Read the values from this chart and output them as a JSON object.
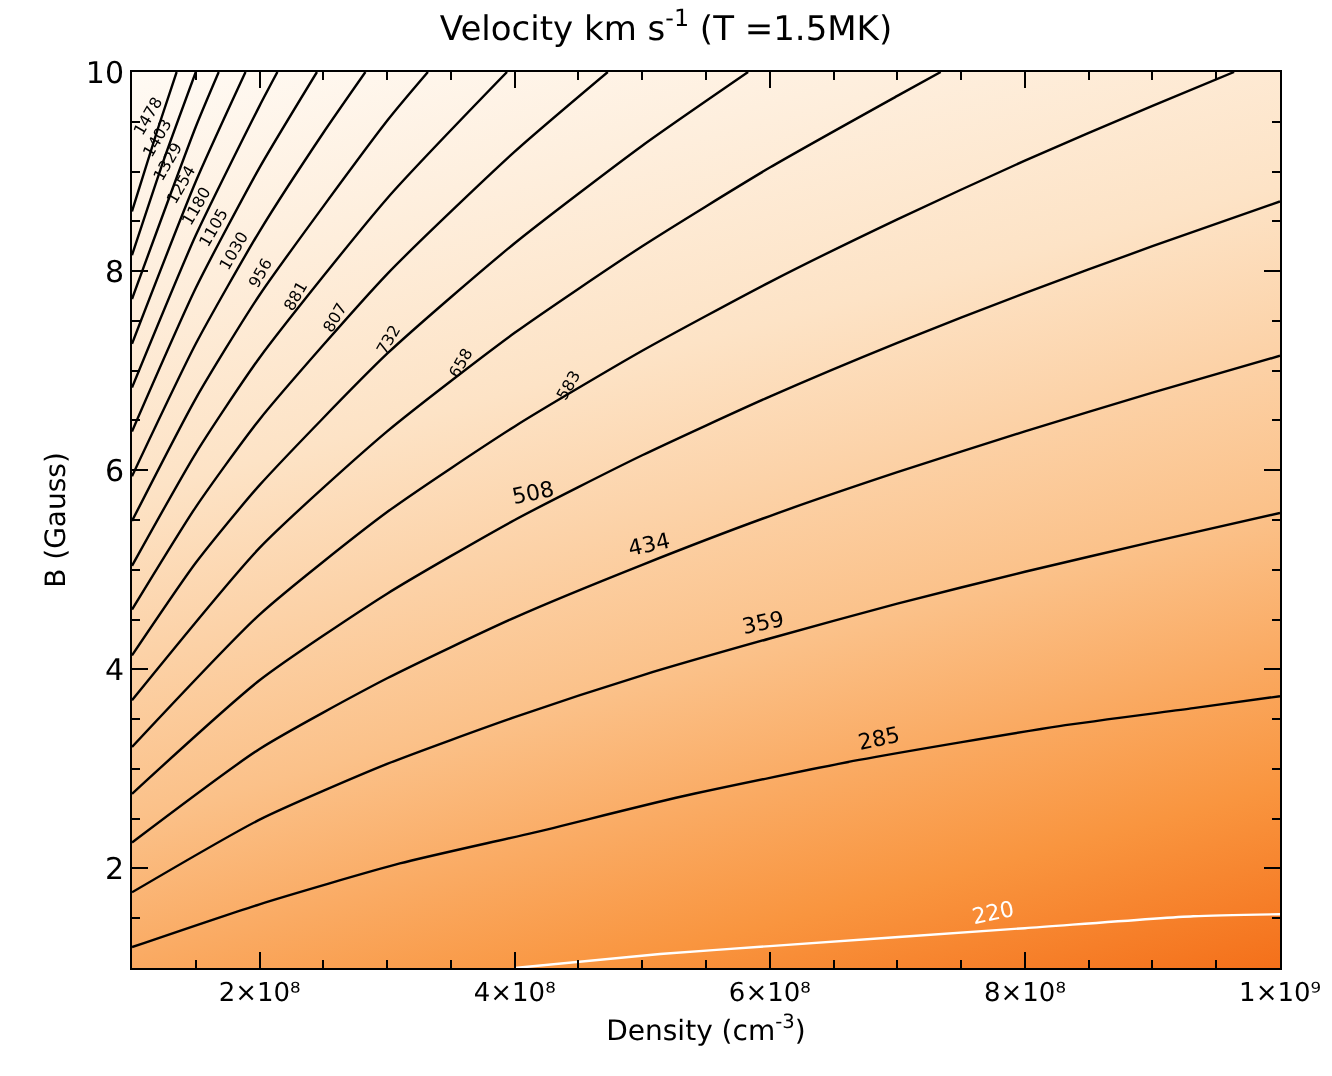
{
  "chart_data": {
    "type": "line",
    "title": "Velocity km s$^{-1}$ (T =1.5MK)",
    "xlabel": "Density (cm$^{-3}$)",
    "ylabel": "B (Gauss)",
    "xlim": [
      100000000,
      1000000000
    ],
    "xticks": [
      {
        "value": 150000000,
        "label": null
      },
      {
        "value": 200000000,
        "label": "2×10⁸"
      },
      {
        "value": 250000000,
        "label": null
      },
      {
        "value": 300000000,
        "label": null
      },
      {
        "value": 350000000,
        "label": null
      },
      {
        "value": 400000000,
        "label": "4×10⁸"
      },
      {
        "value": 450000000,
        "label": null
      },
      {
        "value": 500000000,
        "label": null
      },
      {
        "value": 550000000,
        "label": null
      },
      {
        "value": 600000000,
        "label": "6×10⁸"
      },
      {
        "value": 650000000,
        "label": null
      },
      {
        "value": 700000000,
        "label": null
      },
      {
        "value": 750000000,
        "label": null
      },
      {
        "value": 800000000,
        "label": "8×10⁸"
      },
      {
        "value": 850000000,
        "label": null
      },
      {
        "value": 900000000,
        "label": null
      },
      {
        "value": 950000000,
        "label": null
      },
      {
        "value": 1000000000,
        "label": "1×10⁹"
      }
    ],
    "ylim": [
      1,
      10
    ],
    "yticks": [
      {
        "value": 1.5,
        "label": null
      },
      2,
      {
        "value": 2.5,
        "label": null
      },
      {
        "value": 3,
        "label": null
      },
      {
        "value": 3.5,
        "label": null
      },
      4,
      {
        "value": 4.5,
        "label": null
      },
      {
        "value": 5,
        "label": null
      },
      {
        "value": 5.5,
        "label": null
      },
      6,
      {
        "value": 6.5,
        "label": null
      },
      {
        "value": 7,
        "label": null
      },
      {
        "value": 7.5,
        "label": null
      },
      8,
      {
        "value": 8.5,
        "label": null
      },
      {
        "value": 9,
        "label": null
      },
      {
        "value": 9.5,
        "label": null
      },
      10
    ],
    "grid": false,
    "legend": false,
    "marker": "none",
    "line_style": "solid",
    "series": [
      {
        "name": "220",
        "color": "#ffffff",
        "x": [
          400000000,
          514000000,
          600000000,
          800000000,
          932000000,
          1000000000
        ],
        "values": [
          1.0,
          1.14,
          1.22,
          1.4,
          1.52,
          1.54
        ]
      },
      {
        "name": "285",
        "color": "#000000",
        "x": [
          100000000,
          200000000,
          310000000,
          415000000,
          530000000,
          670000000,
          827000000,
          932000000,
          1000000000
        ],
        "values": [
          1.21,
          1.64,
          2.05,
          2.36,
          2.72,
          3.09,
          3.43,
          3.61,
          3.73
        ]
      },
      {
        "name": "359",
        "color": "#000000",
        "x": [
          100000000,
          200000000,
          300000000,
          400000000,
          500000000,
          600000000,
          700000000,
          800000000,
          900000000,
          1000000000
        ],
        "values": [
          1.76,
          2.49,
          3.05,
          3.52,
          3.94,
          4.31,
          4.66,
          4.98,
          5.28,
          5.57
        ]
      },
      {
        "name": "434",
        "color": "#000000",
        "x": [
          100000000,
          200000000,
          300000000,
          400000000,
          500000000,
          600000000,
          700000000,
          800000000,
          900000000,
          1000000000
        ],
        "values": [
          2.26,
          3.2,
          3.91,
          4.52,
          5.05,
          5.54,
          5.98,
          6.39,
          6.78,
          7.15
        ]
      },
      {
        "name": "508",
        "color": "#000000",
        "x": [
          100000000,
          200000000,
          300000000,
          400000000,
          500000000,
          600000000,
          700000000,
          800000000,
          900000000,
          1000000000
        ],
        "values": [
          2.75,
          3.89,
          4.76,
          5.5,
          6.15,
          6.74,
          7.28,
          7.78,
          8.25,
          8.7
        ]
      },
      {
        "name": "583",
        "color": "#000000",
        "x": [
          100000000,
          200000000,
          300000000,
          400000000,
          500000000,
          600000000,
          700000000,
          800000000,
          900000000,
          964000000
        ],
        "values": [
          3.22,
          4.55,
          5.58,
          6.44,
          7.2,
          7.89,
          8.52,
          9.11,
          9.66,
          10
        ]
      },
      {
        "name": "658",
        "color": "#000000",
        "x": [
          100000000,
          200000000,
          300000000,
          400000000,
          500000000,
          600000000,
          700000000,
          734000000
        ],
        "values": [
          3.69,
          5.22,
          6.39,
          7.38,
          8.25,
          9.04,
          9.76,
          10
        ]
      },
      {
        "name": "732",
        "color": "#000000",
        "x": [
          100000000,
          150000000,
          200000000,
          300000000,
          400000000,
          500000000,
          583000000
        ],
        "values": [
          4.14,
          5.07,
          5.85,
          7.17,
          8.28,
          9.26,
          10
        ]
      },
      {
        "name": "807",
        "color": "#000000",
        "x": [
          100000000,
          150000000,
          200000000,
          300000000,
          400000000,
          473000000
        ],
        "values": [
          4.6,
          5.63,
          6.51,
          7.97,
          9.2,
          10
        ]
      },
      {
        "name": "881",
        "color": "#000000",
        "x": [
          100000000,
          150000000,
          200000000,
          300000000,
          394000000
        ],
        "values": [
          5.04,
          6.17,
          7.13,
          8.73,
          10
        ]
      },
      {
        "name": "956",
        "color": "#000000",
        "x": [
          100000000,
          150000000,
          200000000,
          300000000,
          332000000
        ],
        "values": [
          5.49,
          6.72,
          7.76,
          9.51,
          10
        ]
      },
      {
        "name": "1030",
        "color": "#000000",
        "x": [
          100000000,
          150000000,
          200000000,
          250000000,
          283000000
        ],
        "values": [
          5.94,
          7.27,
          8.4,
          9.39,
          10
        ]
      },
      {
        "name": "1105",
        "color": "#000000",
        "x": [
          100000000,
          150000000,
          200000000,
          245000000
        ],
        "values": [
          6.39,
          7.83,
          9.04,
          10
        ]
      },
      {
        "name": "1180",
        "color": "#000000",
        "x": [
          100000000,
          150000000,
          200000000,
          214000000
        ],
        "values": [
          6.83,
          8.36,
          9.66,
          10
        ]
      },
      {
        "name": "1254",
        "color": "#000000",
        "x": [
          100000000,
          150000000,
          189000000
        ],
        "values": [
          7.27,
          8.9,
          10
        ]
      },
      {
        "name": "1329",
        "color": "#000000",
        "x": [
          100000000,
          150000000,
          168000000
        ],
        "values": [
          7.72,
          9.45,
          10
        ]
      },
      {
        "name": "1403",
        "color": "#000000",
        "x": [
          100000000,
          125000000,
          150000000
        ],
        "values": [
          8.16,
          9.12,
          10
        ]
      },
      {
        "name": "1478",
        "color": "#000000",
        "x": [
          100000000,
          120000000,
          135000000
        ],
        "values": [
          8.6,
          9.42,
          10
        ]
      }
    ]
  }
}
